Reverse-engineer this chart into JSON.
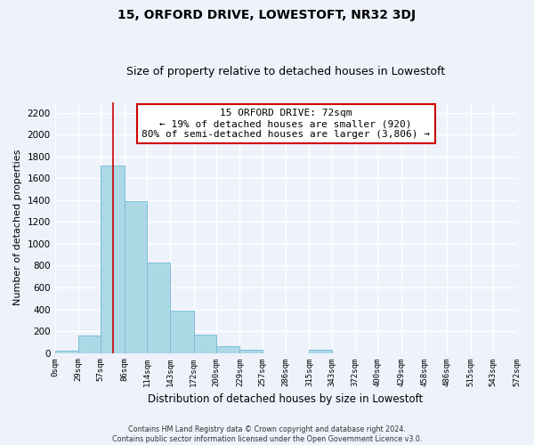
{
  "title": "15, ORFORD DRIVE, LOWESTOFT, NR32 3DJ",
  "subtitle": "Size of property relative to detached houses in Lowestoft",
  "xlabel": "Distribution of detached houses by size in Lowestoft",
  "ylabel": "Number of detached properties",
  "bar_edges": [
    0,
    29,
    57,
    86,
    114,
    143,
    172,
    200,
    229,
    257,
    286,
    315,
    343,
    372,
    400,
    429,
    458,
    486,
    515,
    543,
    572
  ],
  "bar_heights": [
    20,
    160,
    1720,
    1390,
    825,
    385,
    165,
    65,
    30,
    0,
    0,
    30,
    0,
    0,
    0,
    0,
    0,
    0,
    0,
    0
  ],
  "bar_color": "#add8e6",
  "bar_edge_color": "#7bbfda",
  "property_line_x": 72,
  "property_line_color": "#cc0000",
  "annotation_line1": "15 ORFORD DRIVE: 72sqm",
  "annotation_line2": "← 19% of detached houses are smaller (920)",
  "annotation_line3": "80% of semi-detached houses are larger (3,806) →",
  "annotation_box_color": "white",
  "annotation_box_edge_color": "#cc0000",
  "ylim_max": 2300,
  "yticks": [
    0,
    200,
    400,
    600,
    800,
    1000,
    1200,
    1400,
    1600,
    1800,
    2000,
    2200
  ],
  "xtick_labels": [
    "0sqm",
    "29sqm",
    "57sqm",
    "86sqm",
    "114sqm",
    "143sqm",
    "172sqm",
    "200sqm",
    "229sqm",
    "257sqm",
    "286sqm",
    "315sqm",
    "343sqm",
    "372sqm",
    "400sqm",
    "429sqm",
    "458sqm",
    "486sqm",
    "515sqm",
    "543sqm",
    "572sqm"
  ],
  "footer_text": "Contains HM Land Registry data © Crown copyright and database right 2024.\nContains public sector information licensed under the Open Government Licence v3.0.",
  "background_color": "#eef2fb",
  "grid_color": "#ffffff"
}
